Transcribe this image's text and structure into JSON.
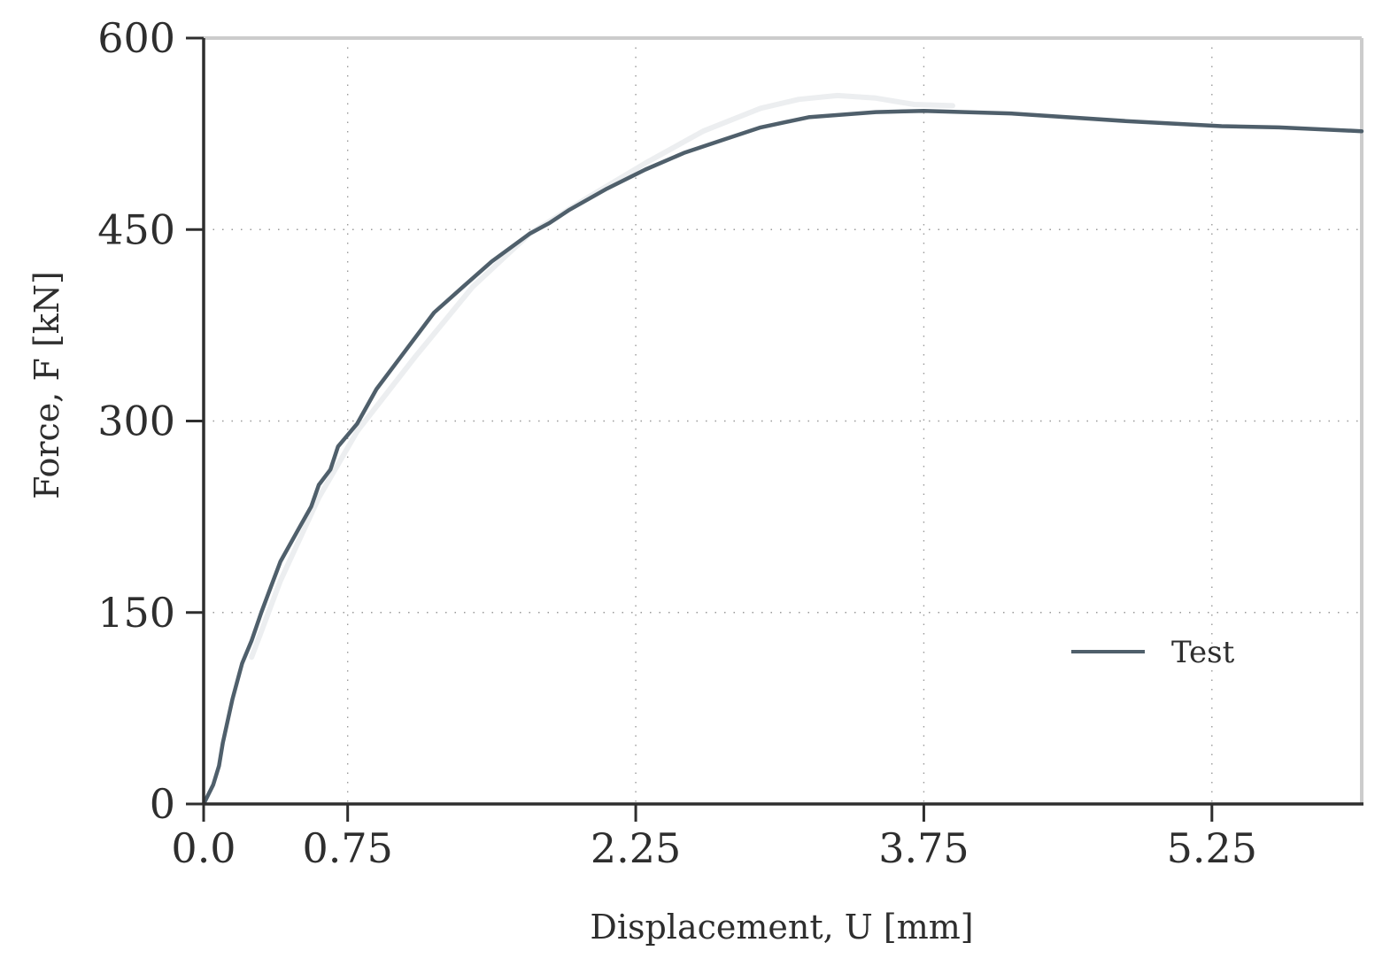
{
  "chart_data": {
    "type": "line",
    "xlabel": "Displacement, U [mm]",
    "ylabel": "Force, F [kN]",
    "xlim": [
      0,
      6.03
    ],
    "ylim": [
      0,
      600
    ],
    "xticks": [
      0.0,
      0.75,
      2.25,
      3.75,
      5.25
    ],
    "xtick_labels": [
      "0.0",
      "0.75",
      "2.25",
      "3.75",
      "5.25"
    ],
    "yticks": [
      0,
      150,
      300,
      450,
      600
    ],
    "ytick_labels": [
      "0",
      "150",
      "300",
      "450",
      "600"
    ],
    "grid": true,
    "legend_position": "lower-right",
    "series": [
      {
        "name": "Test",
        "color": "#4f5f6b",
        "x": [
          0.0,
          0.05,
          0.08,
          0.1,
          0.15,
          0.2,
          0.25,
          0.3,
          0.35,
          0.4,
          0.5,
          0.56,
          0.6,
          0.66,
          0.7,
          0.8,
          0.9,
          1.05,
          1.2,
          1.35,
          1.5,
          1.7,
          1.8,
          1.9,
          2.1,
          2.3,
          2.5,
          2.7,
          2.9,
          3.15,
          3.5,
          3.75,
          4.2,
          4.8,
          5.3,
          5.6,
          6.03
        ],
        "y": [
          0,
          15,
          30,
          48,
          82,
          110,
          128,
          150,
          170,
          190,
          217,
          233,
          250,
          262,
          280,
          298,
          325,
          355,
          385,
          405,
          425,
          447,
          455,
          465,
          482,
          497,
          510,
          520,
          530,
          538,
          542,
          543,
          541,
          535,
          531,
          530,
          527
        ]
      },
      {
        "color": "#eceef0",
        "x": [
          0.25,
          0.4,
          0.6,
          0.8,
          1.1,
          1.4,
          1.7,
          2.0,
          2.3,
          2.6,
          2.9,
          3.1,
          3.3,
          3.5,
          3.7,
          3.9
        ],
        "y": [
          115,
          175,
          240,
          292,
          350,
          405,
          447,
          475,
          502,
          527,
          545,
          552,
          555,
          553,
          548,
          547
        ]
      }
    ]
  }
}
